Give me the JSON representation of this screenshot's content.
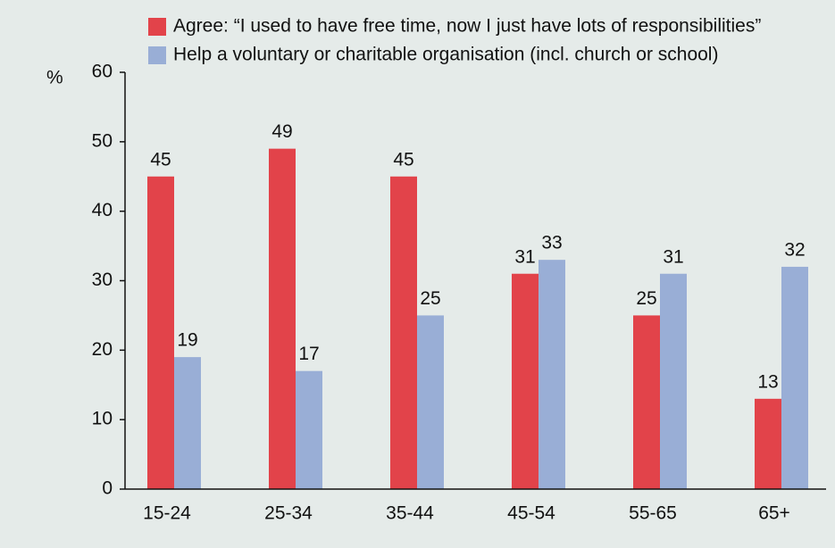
{
  "chart_data": {
    "type": "bar",
    "y_label": "%",
    "categories": [
      "15-24",
      "25-34",
      "35-44",
      "45-54",
      "55-65",
      "65+"
    ],
    "series": [
      {
        "name": "Agree: “I used to have free time, now I just have lots of responsibilities”",
        "color": "#e2434a",
        "values": [
          45,
          49,
          45,
          31,
          25,
          13
        ]
      },
      {
        "name": "Help a voluntary or charitable organisation (incl. church or school)",
        "color": "#99aed6",
        "values": [
          19,
          17,
          25,
          33,
          31,
          32
        ]
      }
    ],
    "ylim": [
      0,
      60
    ],
    "yticks": [
      0,
      10,
      20,
      30,
      40,
      50,
      60
    ],
    "grid": false,
    "legend": "top"
  }
}
